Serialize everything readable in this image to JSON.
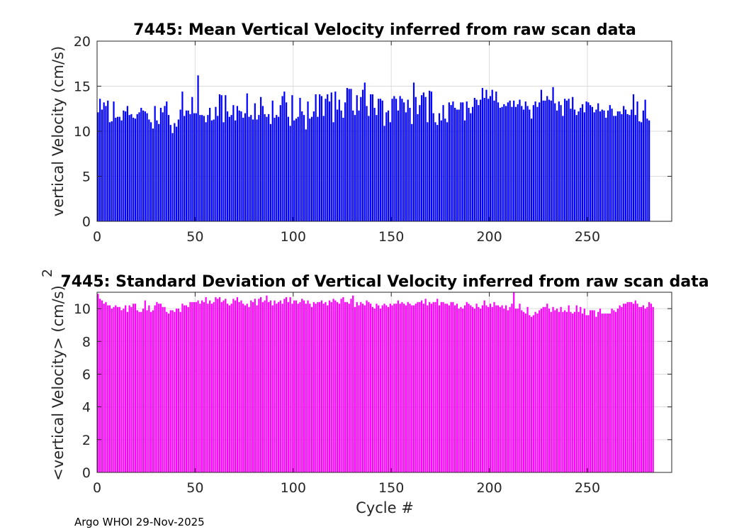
{
  "chart_data": [
    {
      "type": "bar",
      "title": "7445: Mean Vertical Velocity inferred from raw scan data",
      "xlabel": "",
      "ylabel": "vertical Velocity (cm/s)",
      "xlim": [
        0,
        293
      ],
      "ylim": [
        0,
        20
      ],
      "xticks": [
        0,
        50,
        100,
        150,
        200,
        250
      ],
      "yticks": [
        0,
        5,
        10,
        15,
        20
      ],
      "grid": true,
      "color": "#0000ff",
      "x_start": 0,
      "values": [
        12.1,
        13.6,
        12.4,
        13.2,
        12.8,
        13.4,
        11.0,
        11.1,
        13.3,
        11.5,
        11.6,
        11.6,
        11.2,
        12.3,
        12.2,
        12.8,
        11.8,
        11.9,
        11.5,
        11.4,
        11.9,
        12.1,
        12.6,
        12.3,
        12.2,
        12.0,
        11.3,
        11.0,
        10.3,
        12.8,
        11.2,
        10.8,
        12.6,
        12.1,
        12.8,
        13.3,
        11.8,
        10.7,
        9.8,
        10.9,
        10.5,
        11.3,
        12.4,
        14.4,
        11.7,
        12.3,
        12.3,
        11.9,
        13.8,
        12.0,
        12.0,
        16.2,
        11.8,
        11.8,
        11.7,
        11.0,
        11.8,
        12.6,
        11.2,
        11.3,
        12.7,
        11.7,
        14.1,
        14.0,
        11.0,
        14.0,
        12.2,
        11.6,
        11.8,
        12.9,
        11.2,
        12.8,
        12.3,
        12.2,
        11.5,
        12.0,
        14.2,
        11.6,
        11.8,
        11.3,
        13.1,
        11.3,
        11.8,
        13.8,
        12.8,
        11.9,
        11.6,
        11.9,
        10.8,
        13.4,
        11.5,
        11.8,
        11.6,
        12.9,
        13.9,
        14.4,
        13.2,
        11.6,
        10.6,
        14.0,
        11.2,
        11.4,
        11.6,
        13.7,
        12.2,
        11.8,
        10.2,
        13.3,
        11.4,
        11.6,
        12.2,
        14.1,
        11.6,
        14.1,
        13.9,
        11.7,
        13.6,
        14.1,
        13.3,
        14.3,
        11.0,
        14.4,
        12.4,
        13.5,
        12.3,
        11.5,
        13.2,
        14.8,
        14.7,
        14.7,
        12.3,
        11.8,
        14.0,
        12.3,
        13.8,
        14.6,
        15.4,
        12.8,
        11.7,
        14.1,
        14.1,
        12.6,
        11.8,
        13.6,
        13.6,
        13.4,
        10.6,
        12.1,
        12.3,
        11.0,
        13.6,
        13.9,
        13.6,
        12.3,
        13.9,
        13.6,
        13.2,
        12.1,
        13.5,
        12.6,
        10.8,
        15.4,
        13.8,
        11.9,
        12.9,
        14.0,
        14.3,
        13.8,
        11.0,
        14.5,
        14.4,
        12.0,
        11.0,
        10.7,
        12.0,
        11.2,
        12.9,
        11.4,
        11.0,
        13.2,
        12.9,
        13.3,
        12.6,
        12.4,
        12.4,
        13.2,
        13.2,
        11.2,
        13.3,
        12.6,
        12.0,
        12.7,
        13.7,
        13.5,
        12.9,
        13.5,
        14.8,
        13.7,
        14.6,
        13.6,
        13.9,
        14.6,
        13.4,
        14.4,
        13.2,
        12.6,
        12.7,
        13.0,
        12.8,
        13.2,
        13.4,
        12.7,
        13.4,
        12.7,
        13.0,
        13.5,
        12.8,
        12.4,
        13.3,
        12.8,
        12.4,
        11.4,
        12.9,
        13.3,
        12.7,
        13.2,
        14.6,
        13.4,
        13.4,
        13.9,
        13.5,
        13.4,
        14.9,
        13.1,
        12.3,
        13.3,
        12.9,
        11.7,
        13.6,
        13.4,
        13.6,
        12.5,
        13.8,
        12.4,
        11.8,
        12.2,
        12.6,
        13.0,
        12.1,
        13.3,
        13.2,
        12.9,
        12.7,
        12.1,
        12.4,
        13.1,
        12.2,
        12.4,
        12.3,
        11.5,
        12.3,
        12.9,
        12.5,
        11.7,
        11.7,
        12.2,
        12.2,
        11.9,
        12.8,
        12.4,
        11.9,
        11.8,
        12.4,
        14.1,
        11.8,
        13.3,
        11.1,
        11.0,
        12.3,
        13.5,
        11.4,
        11.2
      ]
    },
    {
      "type": "bar",
      "title": "7445: Standard Deviation of Vertical Velocity inferred from raw scan data",
      "xlabel": "Cycle #",
      "ylabel": "<vertical Velocity> (cm/s)",
      "ylabel_superscript": "2",
      "xlim": [
        0,
        293
      ],
      "ylim": [
        0,
        11
      ],
      "xticks": [
        0,
        50,
        100,
        150,
        200,
        250
      ],
      "yticks": [
        0,
        2,
        4,
        6,
        8,
        10
      ],
      "grid": true,
      "color": "#ff00ff",
      "x_start": 0,
      "values": [
        10.9,
        10.6,
        10.5,
        10.3,
        10.4,
        10.2,
        10.2,
        10.0,
        10.1,
        10.2,
        10.1,
        10.1,
        9.9,
        10.0,
        10.2,
        9.8,
        10.2,
        10.1,
        10.3,
        10.3,
        9.9,
        9.8,
        9.8,
        10.0,
        10.5,
        9.9,
        10.2,
        9.8,
        9.9,
        10.2,
        10.4,
        10.3,
        10.3,
        10.1,
        10.1,
        9.8,
        9.7,
        9.9,
        9.9,
        9.8,
        10.0,
        10.0,
        9.8,
        10.3,
        10.2,
        10.2,
        10.1,
        10.4,
        10.4,
        10.4,
        10.4,
        10.5,
        10.3,
        10.5,
        10.4,
        10.7,
        10.3,
        10.5,
        10.3,
        10.4,
        10.7,
        10.6,
        10.7,
        10.4,
        10.5,
        10.6,
        10.3,
        10.2,
        10.3,
        10.6,
        10.5,
        10.7,
        10.4,
        10.5,
        10.3,
        10.2,
        10.3,
        10.1,
        10.5,
        10.4,
        10.6,
        10.2,
        10.6,
        10.7,
        10.4,
        10.5,
        10.8,
        10.4,
        10.5,
        10.2,
        10.5,
        10.3,
        10.4,
        10.5,
        10.3,
        10.6,
        10.7,
        10.4,
        10.7,
        10.3,
        10.5,
        10.5,
        10.3,
        10.4,
        10.6,
        10.5,
        10.3,
        10.5,
        10.3,
        10.1,
        10.4,
        10.3,
        10.4,
        10.4,
        10.5,
        10.3,
        10.4,
        10.2,
        10.5,
        10.4,
        10.6,
        10.5,
        10.4,
        10.3,
        10.6,
        10.7,
        10.4,
        10.4,
        10.3,
        10.6,
        10.8,
        10.1,
        10.4,
        10.2,
        10.4,
        10.3,
        10.2,
        10.5,
        10.4,
        10.3,
        10.1,
        10.0,
        10.3,
        10.2,
        10.0,
        10.2,
        10.3,
        10.2,
        10.1,
        10.3,
        10.2,
        10.3,
        10.3,
        10.5,
        10.3,
        10.4,
        10.3,
        10.2,
        10.4,
        10.3,
        10.2,
        10.2,
        10.3,
        10.4,
        10.4,
        10.5,
        10.3,
        10.6,
        10.2,
        10.4,
        10.3,
        10.4,
        10.4,
        10.6,
        10.2,
        10.4,
        10.4,
        10.3,
        10.3,
        10.2,
        10.4,
        10.4,
        10.2,
        10.3,
        10.0,
        10.1,
        10.0,
        10.2,
        10.4,
        10.3,
        10.2,
        10.1,
        10.0,
        10.3,
        10.1,
        10.0,
        10.2,
        10.5,
        10.2,
        10.1,
        10.3,
        10.1,
        10.4,
        10.2,
        10.2,
        10.1,
        10.2,
        10.0,
        10.2,
        9.9,
        10.1,
        10.3,
        11.1,
        10.0,
        10.0,
        10.3,
        9.9,
        9.8,
        9.7,
        10.1,
        9.6,
        9.5,
        9.6,
        9.8,
        9.7,
        9.9,
        10.0,
        10.1,
        10.1,
        10.3,
        10.0,
        9.8,
        10.1,
        9.9,
        10.0,
        9.8,
        10.1,
        9.8,
        9.9,
        9.8,
        10.2,
        9.8,
        9.7,
        9.8,
        10.2,
        9.8,
        10.1,
        9.7,
        10.0,
        9.6,
        9.6,
        9.9,
        9.9,
        9.9,
        9.5,
        9.8,
        10.0,
        9.7,
        9.7,
        9.7,
        9.7,
        9.7,
        10.0,
        9.9,
        9.8,
        10.0,
        10.2,
        10.1,
        10.3,
        10.3,
        10.4,
        10.4,
        10.4,
        10.3,
        10.5,
        10.3,
        10.1,
        10.1,
        10.2,
        10.0,
        10.1,
        10.4,
        10.3,
        10.1
      ]
    }
  ],
  "footer": "Argo WHOI 29-Nov-2025"
}
